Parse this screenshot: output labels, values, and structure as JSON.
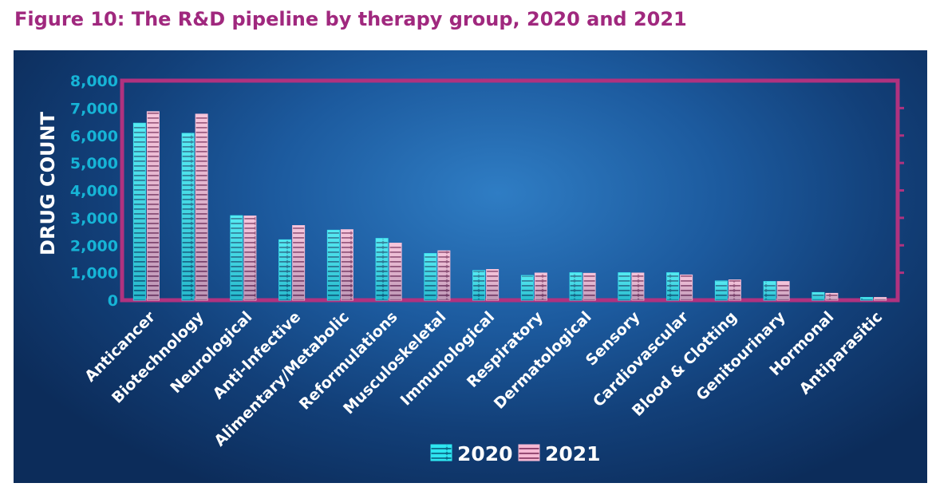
{
  "figure_title": "Figure 10: The R&D pipeline by therapy group, 2020 and 2021",
  "colors": {
    "title": "#a0287e",
    "frame": "#b0327f",
    "tick_text": "#16b4d6",
    "label_text": "#ffffff",
    "series_2020": "#2ee6f0",
    "series_2021": "#f5b8d3"
  },
  "chart_data": {
    "type": "bar",
    "title": "Figure 10: The R&D pipeline by therapy group, 2020 and 2021",
    "ylabel": "DRUG COUNT",
    "xlabel": "",
    "ylim": [
      0,
      8000
    ],
    "yticks": [
      0,
      1000,
      2000,
      3000,
      4000,
      5000,
      6000,
      7000,
      8000
    ],
    "ytick_labels": [
      "0",
      "1,000",
      "2,000",
      "3,000",
      "4,000",
      "5,000",
      "6,000",
      "7,000",
      "8,000"
    ],
    "grid": false,
    "legend": "bottom-center",
    "categories": [
      "Anticancer",
      "Biotechnology",
      "Neurological",
      "Anti-Infective",
      "Alimentary/Metabolic",
      "Reformulations",
      "Musculoskeletal",
      "Immunological",
      "Respiratory",
      "Dermatological",
      "Sensory",
      "Cardiovascular",
      "Blood & Clotting",
      "Genitourinary",
      "Hormonal",
      "Antiparasitic"
    ],
    "series": [
      {
        "name": "2020",
        "values": [
          6450,
          6080,
          3080,
          2200,
          2550,
          2250,
          1700,
          1080,
          900,
          1000,
          1000,
          1000,
          700,
          680,
          280,
          100
        ]
      },
      {
        "name": "2021",
        "values": [
          6870,
          6780,
          3070,
          2720,
          2570,
          2080,
          1800,
          1120,
          990,
          980,
          990,
          920,
          740,
          680,
          250,
          100
        ]
      }
    ]
  }
}
